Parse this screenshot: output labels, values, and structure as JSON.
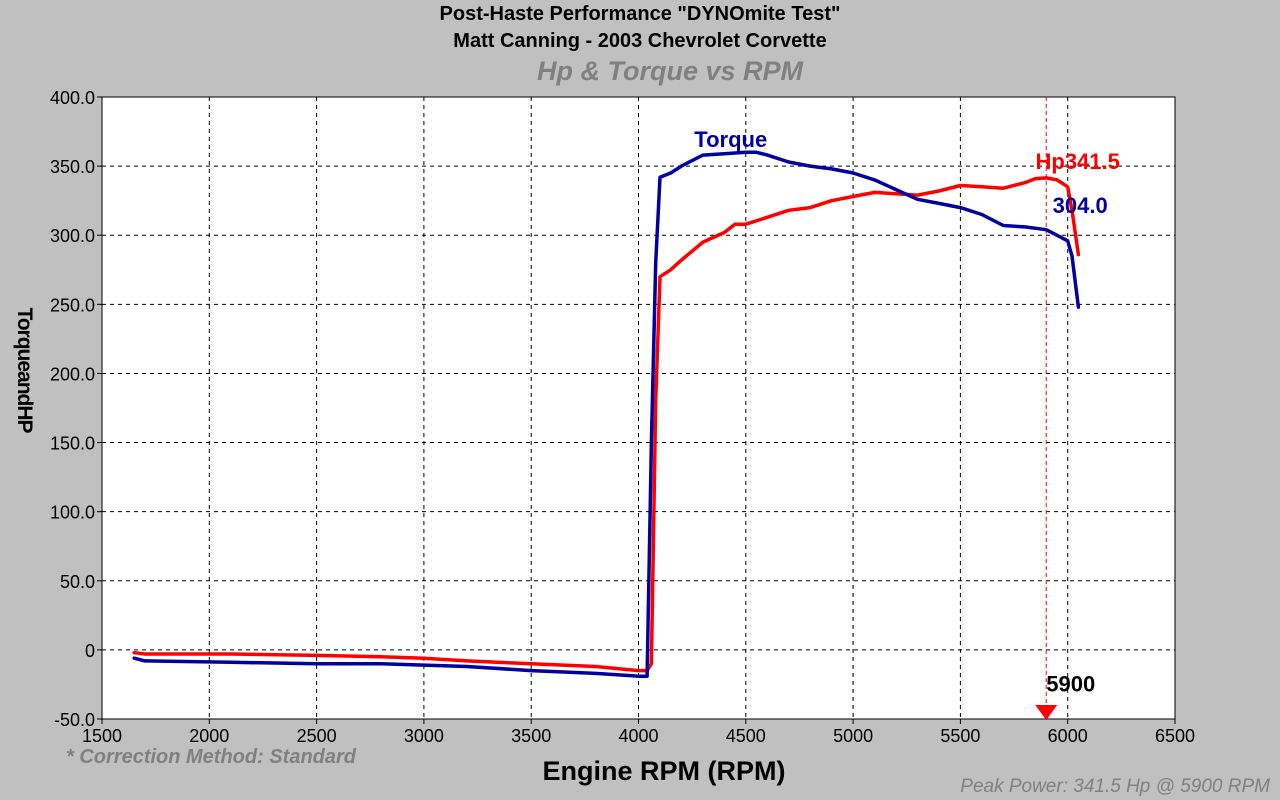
{
  "header": {
    "title_line1": "Post-Haste Performance \"DYNOmite Test\"",
    "title_line2": "Matt Canning - 2003 Chevrolet Corvette",
    "subtitle": "Hp & Torque vs RPM"
  },
  "footer": {
    "correction": "* Correction Method: Standard",
    "peak": "Peak Power: 341.5 Hp @ 5900 RPM"
  },
  "chart_data": {
    "type": "line",
    "title": "Hp & Torque vs RPM",
    "xlabel": "Engine RPM (RPM)",
    "ylabel": "TorqueandHP",
    "xlim": [
      1500,
      6500
    ],
    "ylim": [
      -50,
      400
    ],
    "x_ticks": [
      1500,
      2000,
      2500,
      3000,
      3500,
      4000,
      4500,
      5000,
      5500,
      6000,
      6500
    ],
    "y_ticks": [
      -50,
      0,
      50,
      100,
      150,
      200,
      250,
      300,
      350,
      400
    ],
    "y_tick_labels": [
      "-50.0",
      "0",
      "50.0",
      "100.0",
      "150.0",
      "200.0",
      "250.0",
      "300.0",
      "350.0",
      "400.0"
    ],
    "grid": true,
    "series": [
      {
        "name": "Hp",
        "color": "#ff0000",
        "x": [
          1650,
          1700,
          2100,
          2500,
          2800,
          3000,
          3200,
          3500,
          3800,
          4000,
          4040,
          4060,
          4080,
          4100,
          4150,
          4200,
          4300,
          4400,
          4450,
          4500,
          4600,
          4700,
          4800,
          4900,
          5000,
          5100,
          5200,
          5300,
          5400,
          5500,
          5600,
          5700,
          5800,
          5850,
          5900,
          5950,
          6000,
          6020,
          6050
        ],
        "values": [
          -2,
          -3,
          -3,
          -4,
          -5,
          -6,
          -8,
          -10,
          -12,
          -15,
          -15,
          -10,
          180,
          270,
          275,
          282,
          295,
          302,
          308,
          308,
          313,
          318,
          320,
          325,
          328,
          331,
          330,
          329,
          332,
          336,
          335,
          334,
          338,
          341,
          341.5,
          340,
          335,
          318,
          286
        ]
      },
      {
        "name": "Torque",
        "color": "#0000a0",
        "x": [
          1650,
          1700,
          2100,
          2500,
          2800,
          3000,
          3200,
          3500,
          3800,
          4000,
          4040,
          4060,
          4080,
          4100,
          4150,
          4200,
          4300,
          4400,
          4500,
          4550,
          4600,
          4700,
          4800,
          4900,
          5000,
          5100,
          5200,
          5300,
          5400,
          5500,
          5600,
          5700,
          5800,
          5900,
          6000,
          6020,
          6050
        ],
        "values": [
          -6,
          -8,
          -9,
          -10,
          -10,
          -11,
          -12,
          -15,
          -17,
          -19,
          -19,
          150,
          280,
          342,
          345,
          350,
          358,
          359,
          360,
          360,
          358,
          353,
          350,
          348,
          345,
          340,
          333,
          326,
          323,
          320,
          315,
          307,
          306,
          304,
          296,
          285,
          248
        ]
      }
    ],
    "annotations": [
      {
        "text": "Torque",
        "color": "#0000a0",
        "x": 4260,
        "y": 364
      },
      {
        "text": "Hp341.5",
        "color": "#ff0000",
        "x": 5850,
        "y": 348
      },
      {
        "text": "304.0",
        "color": "#0000a0",
        "x": 5930,
        "y": 316
      },
      {
        "text": "5900",
        "color": "#000000",
        "x": 5900,
        "y": -30
      }
    ],
    "marker": {
      "x": 5900,
      "color": "#ff0000"
    }
  }
}
